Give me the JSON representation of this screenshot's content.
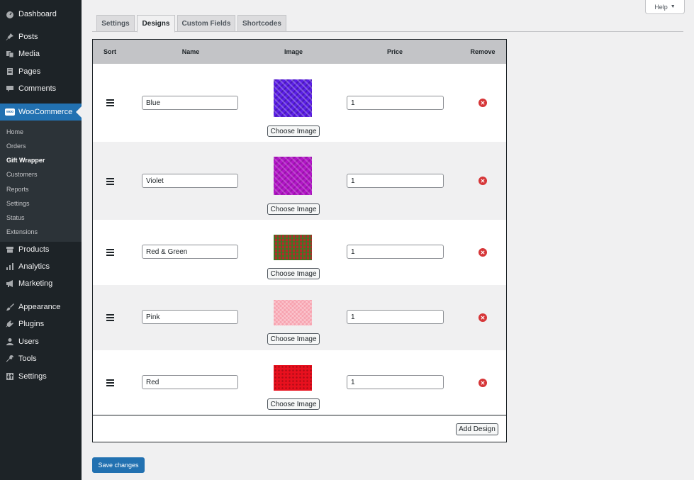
{
  "sidebar": {
    "items": [
      {
        "label": "Dashboard",
        "icon": "dashboard-icon"
      },
      {
        "label": "Posts",
        "icon": "pin-icon"
      },
      {
        "label": "Media",
        "icon": "media-icon"
      },
      {
        "label": "Pages",
        "icon": "pages-icon"
      },
      {
        "label": "Comments",
        "icon": "comments-icon"
      },
      {
        "label": "WooCommerce",
        "icon": "woocommerce-icon",
        "badge": "woo"
      },
      {
        "label": "Products",
        "icon": "products-icon"
      },
      {
        "label": "Analytics",
        "icon": "analytics-icon"
      },
      {
        "label": "Marketing",
        "icon": "megaphone-icon"
      },
      {
        "label": "Appearance",
        "icon": "brush-icon"
      },
      {
        "label": "Plugins",
        "icon": "plug-icon"
      },
      {
        "label": "Users",
        "icon": "user-icon"
      },
      {
        "label": "Tools",
        "icon": "wrench-icon"
      },
      {
        "label": "Settings",
        "icon": "settings-icon"
      }
    ],
    "submenu": [
      "Home",
      "Orders",
      "Gift Wrapper",
      "Customers",
      "Reports",
      "Settings",
      "Status",
      "Extensions"
    ]
  },
  "help": {
    "label": "Help",
    "arrow": "▼"
  },
  "tabs": [
    "Settings",
    "Designs",
    "Custom Fields",
    "Shortcodes"
  ],
  "table": {
    "headers": {
      "sort": "Sort",
      "name": "Name",
      "image": "Image",
      "price": "Price",
      "remove": "Remove"
    },
    "rows": [
      {
        "name": "Blue",
        "price": "1",
        "choose_label": "Choose Image",
        "swatch_color": "#5b1ee6"
      },
      {
        "name": "Violet",
        "price": "1",
        "choose_label": "Choose Image",
        "swatch_color": "#b215c7"
      },
      {
        "name": "Red & Green",
        "price": "1",
        "choose_label": "Choose Image",
        "swatch_color": "#b3292b"
      },
      {
        "name": "Pink",
        "price": "1",
        "choose_label": "Choose Image",
        "swatch_color": "#f7a3b0"
      },
      {
        "name": "Red",
        "price": "1",
        "choose_label": "Choose Image",
        "swatch_color": "#e8101e"
      }
    ],
    "add_label": "Add Design"
  },
  "save_label": "Save changes",
  "colors": {
    "accent": "#2271b1",
    "sidebar_bg": "#1d2327",
    "remove": "#d63638"
  }
}
